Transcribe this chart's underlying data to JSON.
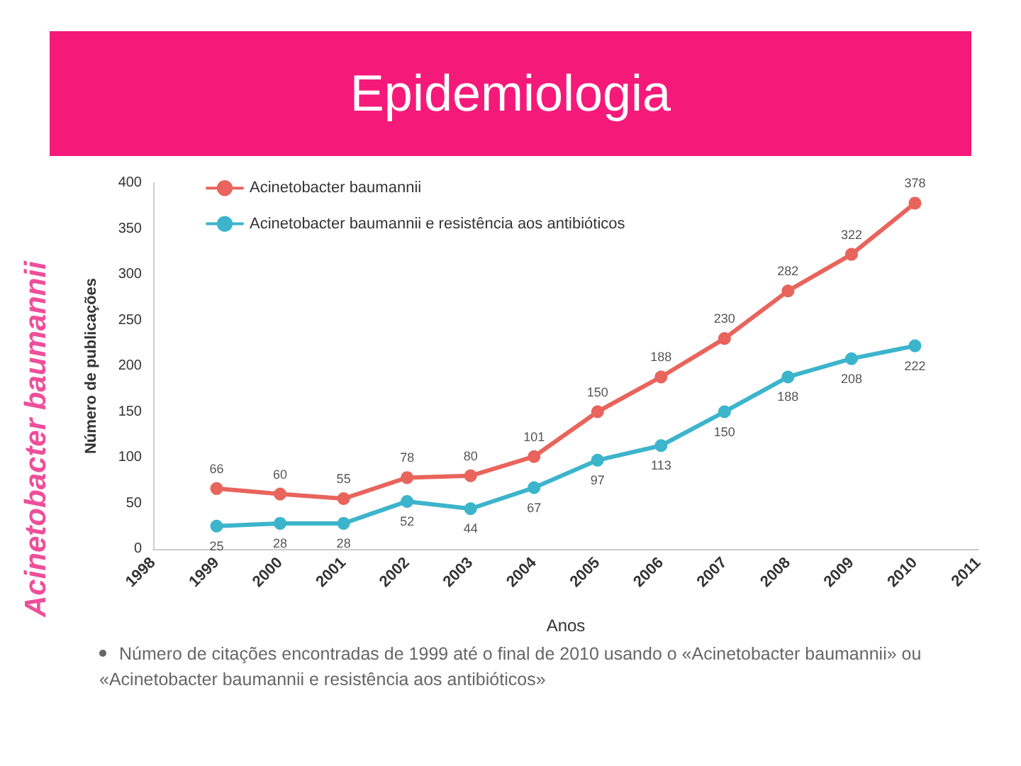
{
  "chart_data": {
    "type": "line",
    "title": "Epidemiologia",
    "xlabel": "Anos",
    "ylabel": "Número de publicações",
    "annotations": [
      "Acinetobacter baumannii",
      "Número de citações encontradas de 1999 até o final de 2010 usando o «Acinetobacter baumannii» ou «Acinetobacter baumannii e resistência aos antibióticos»"
    ],
    "categories": [
      "1998",
      "1999",
      "2000",
      "2001",
      "2002",
      "2003",
      "2004",
      "2005",
      "2006",
      "2007",
      "2008",
      "2009",
      "2010",
      "2011"
    ],
    "series": [
      {
        "name": "Acinetobacter baumannii",
        "color": "#e8645c",
        "values": [
          null,
          66,
          60,
          55,
          78,
          80,
          101,
          150,
          188,
          230,
          282,
          322,
          378,
          null
        ]
      },
      {
        "name": "Acinetobacter baumannii e resistência aos antibióticos",
        "color": "#3cb4cc",
        "values": [
          null,
          25,
          28,
          28,
          52,
          44,
          67,
          97,
          113,
          150,
          188,
          208,
          222,
          null
        ]
      }
    ],
    "ylim": [
      0,
      400
    ],
    "yticks": [
      0,
      50,
      100,
      150,
      200,
      250,
      300,
      350,
      400
    ],
    "grid": false,
    "legend": "top left",
    "marker": "circle",
    "line_style": "solid",
    "data_labels": true
  }
}
